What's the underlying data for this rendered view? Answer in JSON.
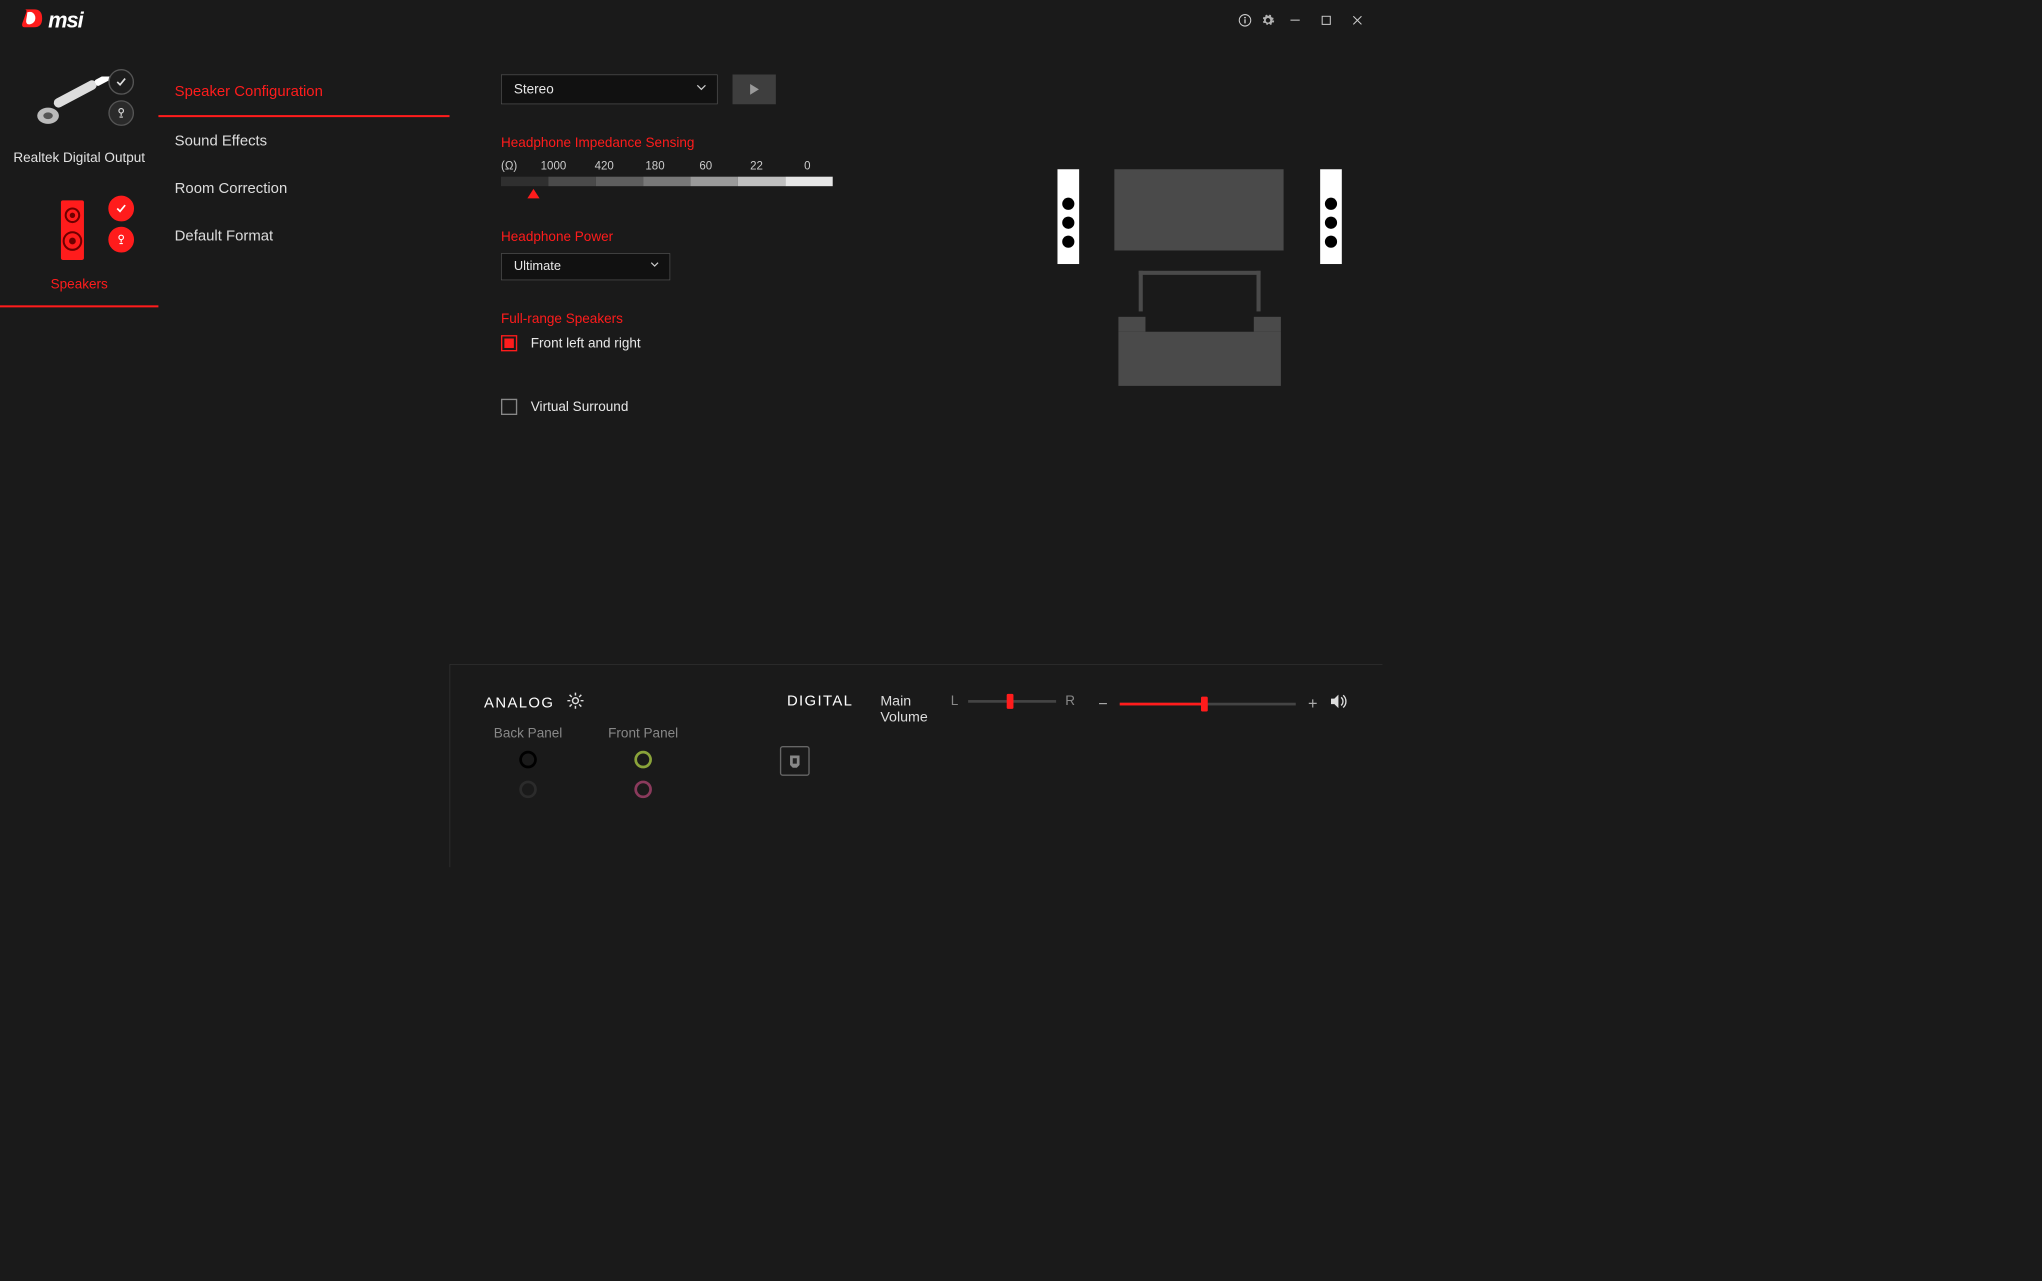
{
  "brand": "msi",
  "devices": [
    {
      "id": "digital-output",
      "label": "Realtek Digital Output",
      "selected": false,
      "badges": [
        {
          "type": "check",
          "red": false
        },
        {
          "type": "mic",
          "red": false
        }
      ]
    },
    {
      "id": "speakers",
      "label": "Speakers",
      "selected": true,
      "badges": [
        {
          "type": "check",
          "red": true
        },
        {
          "type": "mic",
          "red": true
        }
      ]
    }
  ],
  "subnav": [
    {
      "id": "speaker-config",
      "label": "Speaker Configuration",
      "active": true
    },
    {
      "id": "sound-effects",
      "label": "Sound Effects",
      "active": false
    },
    {
      "id": "room-correction",
      "label": "Room Correction",
      "active": false
    },
    {
      "id": "default-format",
      "label": "Default Format",
      "active": false
    }
  ],
  "speakerMode": {
    "selected": "Stereo"
  },
  "impedance": {
    "title": "Headphone Impedance Sensing",
    "unit": "(Ω)",
    "ticks": [
      "1000",
      "420",
      "180",
      "60",
      "22",
      "0"
    ],
    "segment_colors": [
      "#2f2f2f",
      "#4a4a4a",
      "#5e5e5e",
      "#787878",
      "#9a9a9a",
      "#bfbfbf",
      "#e6e6e6"
    ],
    "marker_segment": 0.08
  },
  "headphonePower": {
    "title": "Headphone Power",
    "selected": "Ultimate"
  },
  "fullRange": {
    "title": "Full-range Speakers",
    "options": [
      {
        "id": "front-lr",
        "label": "Front left and right",
        "checked": true
      }
    ]
  },
  "virtualSurround": {
    "label": "Virtual Surround",
    "checked": false
  },
  "bottom": {
    "analog": "ANALOG",
    "digital": "DIGITAL",
    "backPanel": "Back Panel",
    "frontPanel": "Front Panel",
    "backJacks": [
      "#000000",
      "#2b2b2b"
    ],
    "frontJacks": [
      "#8aa33a",
      "#8a3a5c"
    ],
    "mainVolume": "Main Volume",
    "balance": {
      "left": "L",
      "right": "R",
      "value": 0.48
    },
    "volume": {
      "value": 0.48
    }
  },
  "colors": {
    "accent": "#ff1c1c",
    "bg": "#1a1a1a",
    "panel": "#111111"
  }
}
